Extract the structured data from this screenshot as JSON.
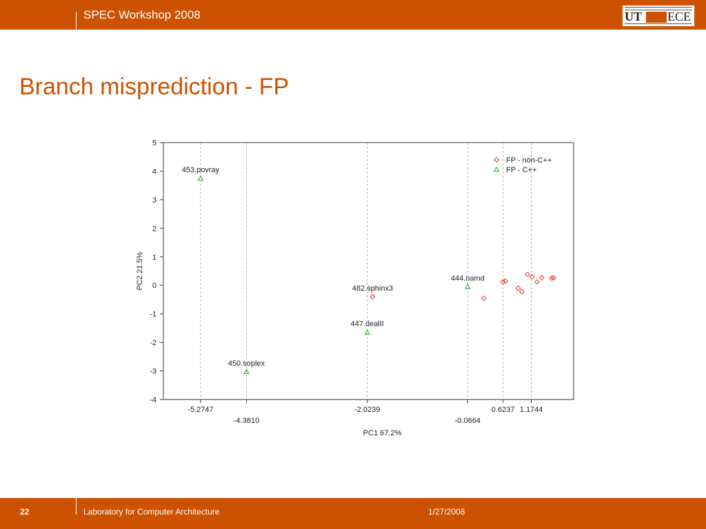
{
  "header": {
    "title": "SPEC Workshop 2008",
    "logo_text_left": "UT",
    "logo_text_right": "ECE"
  },
  "slide": {
    "title": "Branch misprediction - FP"
  },
  "footer": {
    "page_number": "22",
    "lab": "Laboratory for Computer Architecture",
    "date": "1/27/2008"
  },
  "colors": {
    "brand": "#cc5200",
    "non_cpp": "#dd3333",
    "cpp": "#22aa22"
  },
  "chart_data": {
    "type": "scatter",
    "title": "",
    "xlabel": "PC1 67.2%",
    "ylabel": "PC2 21.5%",
    "xlim": [
      -6.0,
      2.0
    ],
    "ylim": [
      -4,
      5
    ],
    "y_ticks": [
      5,
      4,
      3,
      2,
      1,
      0,
      -1,
      -2,
      -3,
      -4
    ],
    "x_ticks": [
      -5.2747,
      -4.381,
      -2.0239,
      -0.0664,
      0.6237,
      1.1744
    ],
    "x_tick_labels": [
      "-5.2747",
      "-4.3810",
      "-2.0239",
      "-0.0664",
      "0.6237",
      "1.1744"
    ],
    "grid": "dashed vertical at x ticks",
    "legend_position": "top-right",
    "series": [
      {
        "name": "FP - non-C++",
        "marker": "diamond",
        "points": [
          {
            "x": -1.92,
            "y": -0.4,
            "label": "482.sphinx3"
          },
          {
            "x": 0.25,
            "y": -0.45,
            "label": ""
          },
          {
            "x": 0.62,
            "y": 0.12,
            "label": ""
          },
          {
            "x": 0.67,
            "y": 0.15,
            "label": ""
          },
          {
            "x": 0.92,
            "y": -0.1,
            "label": ""
          },
          {
            "x": 0.99,
            "y": -0.22,
            "label": ""
          },
          {
            "x": 1.1,
            "y": 0.38,
            "label": ""
          },
          {
            "x": 1.19,
            "y": 0.3,
            "label": ""
          },
          {
            "x": 1.29,
            "y": 0.12,
            "label": ""
          },
          {
            "x": 1.38,
            "y": 0.27,
            "label": ""
          },
          {
            "x": 1.57,
            "y": 0.25,
            "label": ""
          },
          {
            "x": 1.61,
            "y": 0.26,
            "label": ""
          }
        ]
      },
      {
        "name": "FP - C++",
        "marker": "triangle",
        "points": [
          {
            "x": -5.2747,
            "y": 3.75,
            "label": "453.povray"
          },
          {
            "x": -4.381,
            "y": -3.03,
            "label": "450.soplex"
          },
          {
            "x": -2.0239,
            "y": -1.65,
            "label": "447.dealII"
          },
          {
            "x": -0.0664,
            "y": -0.05,
            "label": "444.namd"
          }
        ]
      }
    ]
  }
}
